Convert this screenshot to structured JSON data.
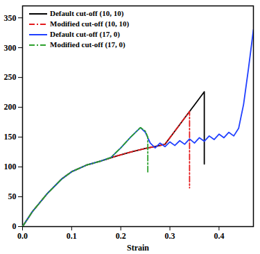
{
  "chart_data": {
    "type": "line",
    "x_label": "Strain",
    "xlim": [
      0,
      0.47
    ],
    "xticks": [
      {
        "value": 0,
        "label": "0.0"
      },
      {
        "value": 0.1,
        "label": "0.1"
      },
      {
        "value": 0.2,
        "label": "0.2"
      },
      {
        "value": 0.3,
        "label": "0.3"
      },
      {
        "value": 0.4,
        "label": "0.4"
      }
    ],
    "ylim": [
      0,
      370
    ],
    "yticks": [
      0,
      50,
      100,
      150,
      200,
      250,
      300,
      350
    ],
    "legend": "upper left",
    "series": [
      {
        "name": "Default cut-off (10, 10)",
        "color": "#000000",
        "line_style": "solid",
        "x": [
          0,
          0.02,
          0.05,
          0.08,
          0.1,
          0.13,
          0.16,
          0.19,
          0.22,
          0.25,
          0.28,
          0.29,
          0.31,
          0.33,
          0.35,
          0.37,
          0.37
        ],
        "values": [
          0,
          25,
          55,
          80,
          92,
          103,
          110,
          118,
          125,
          131,
          136,
          138,
          160,
          182,
          204,
          226,
          105
        ]
      },
      {
        "name": "Modified cut-off (10, 10)",
        "color": "#e41a1c",
        "line_style": "dashdot",
        "x": [
          0,
          0.02,
          0.05,
          0.08,
          0.1,
          0.13,
          0.16,
          0.19,
          0.22,
          0.25,
          0.28,
          0.29,
          0.31,
          0.33,
          0.34,
          0.34
        ],
        "values": [
          0,
          25,
          55,
          80,
          92,
          103,
          110,
          118,
          125,
          131,
          136,
          138,
          160,
          182,
          193,
          65
        ]
      },
      {
        "name": "Default cut-off (17, 0)",
        "color": "#1f3fff",
        "line_style": "solid",
        "x": [
          0,
          0.02,
          0.05,
          0.08,
          0.1,
          0.13,
          0.16,
          0.18,
          0.2,
          0.22,
          0.24,
          0.25,
          0.26,
          0.27,
          0.28,
          0.29,
          0.3,
          0.31,
          0.32,
          0.33,
          0.34,
          0.35,
          0.36,
          0.37,
          0.38,
          0.39,
          0.4,
          0.41,
          0.42,
          0.43,
          0.44,
          0.45,
          0.46,
          0.47
        ],
        "values": [
          0,
          25,
          55,
          80,
          92,
          103,
          110,
          116,
          132,
          150,
          166,
          158,
          140,
          132,
          140,
          134,
          142,
          136,
          144,
          138,
          147,
          140,
          149,
          143,
          152,
          146,
          155,
          149,
          158,
          152,
          165,
          205,
          265,
          330
        ]
      },
      {
        "name": "Modified cut-off (17, 0)",
        "color": "#2ca02c",
        "line_style": "dashdot",
        "x": [
          0,
          0.02,
          0.05,
          0.08,
          0.1,
          0.13,
          0.16,
          0.18,
          0.2,
          0.22,
          0.24,
          0.25,
          0.255,
          0.255
        ],
        "values": [
          0,
          25,
          55,
          80,
          92,
          103,
          110,
          116,
          132,
          150,
          166,
          160,
          150,
          90
        ]
      }
    ]
  }
}
